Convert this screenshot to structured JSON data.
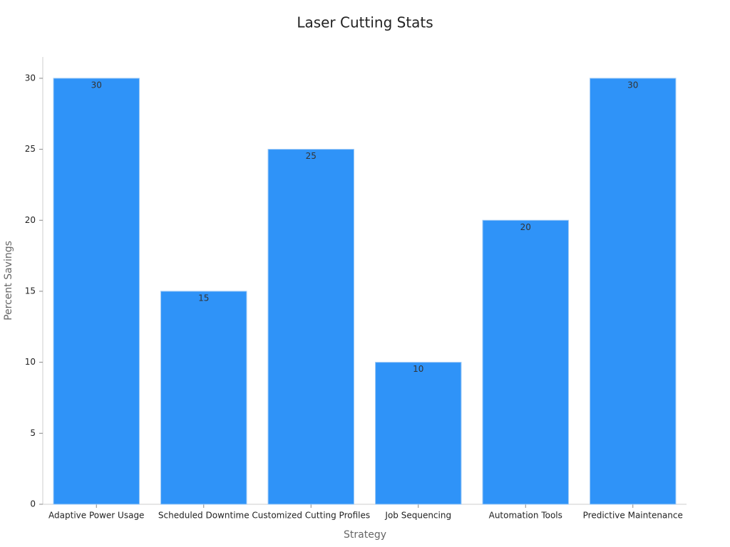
{
  "chart_data": {
    "type": "bar",
    "title": "Laser Cutting Stats",
    "x_label": "Strategy",
    "y_label": "Percent Savings",
    "categories": [
      "Adaptive Power Usage",
      "Scheduled Downtime",
      "Customized Cutting Profiles",
      "Job Sequencing",
      "Automation Tools",
      "Predictive Maintenance"
    ],
    "values": [
      30,
      15,
      25,
      10,
      20,
      30
    ],
    "color": "#2f93f8",
    "ylim": [
      0,
      31.5
    ],
    "yticks": [
      0,
      5,
      10,
      15,
      20,
      25,
      30
    ],
    "grid": false
  }
}
